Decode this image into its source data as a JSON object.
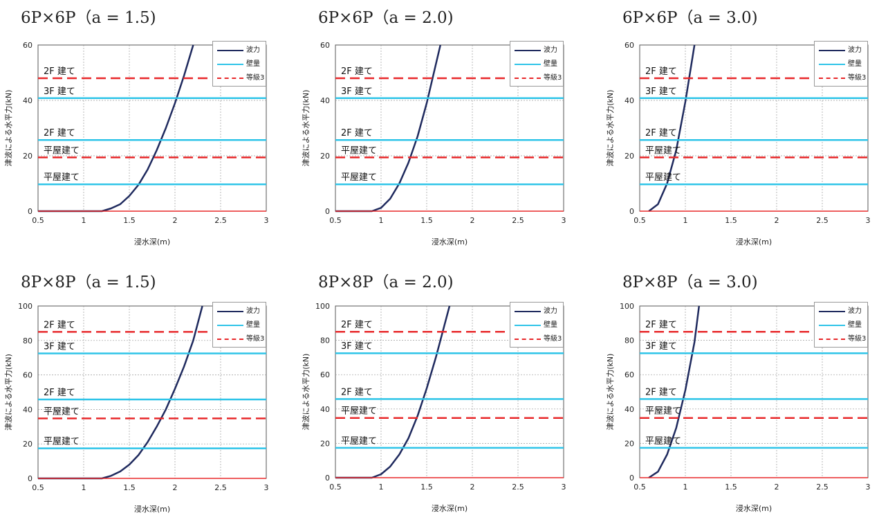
{
  "chart_data": [
    {
      "type": "line",
      "title": "6P×6P（a = 1.5)",
      "xlabel": "浸水深(m)",
      "ylabel": "津波による水平力(kN)",
      "xlim": [
        0.5,
        3
      ],
      "ylim": [
        0,
        60
      ],
      "xticks": [
        0.5,
        1,
        1.5,
        2,
        2.5,
        3
      ],
      "xtick_labels": [
        "0.5",
        "1",
        "1.5",
        "2",
        "2.5",
        "3"
      ],
      "yticks": [
        0,
        20,
        40,
        60
      ],
      "ytick_labels": [
        "0",
        "20",
        "40",
        "60"
      ],
      "grid": true,
      "legend_position": "top-right",
      "series": [
        {
          "name": "波力",
          "color": "#1f2a5e",
          "x": [
            0.5,
            1.2,
            1.3,
            1.4,
            1.5,
            1.6,
            1.7,
            1.8,
            1.9,
            2.0,
            2.1,
            2.2
          ],
          "y": [
            0,
            0,
            1.0,
            2.5,
            5.5,
            9.5,
            15.0,
            22.0,
            30.0,
            39.0,
            49.0,
            60.0
          ]
        },
        {
          "name": "壁量",
          "color": "#2ec4e8",
          "y_const": [
            9.7,
            25.7,
            40.8
          ]
        },
        {
          "name": "等級3",
          "color": "#e8282a",
          "dashed": true,
          "y_const": [
            19.4,
            48.0
          ]
        }
      ],
      "annotations": [
        {
          "text": "2F 建て",
          "y": 48.0
        },
        {
          "text": "3F 建て",
          "y": 40.8
        },
        {
          "text": "2F 建て",
          "y": 25.7
        },
        {
          "text": "平屋建て",
          "y": 19.4
        },
        {
          "text": "平屋建て",
          "y": 9.7
        }
      ]
    },
    {
      "type": "line",
      "title": "6P×6P（a = 2.0)",
      "xlabel": "浸水深(m)",
      "ylabel": "津波による水平力(kN)",
      "xlim": [
        0.5,
        3
      ],
      "ylim": [
        0,
        60
      ],
      "xticks": [
        0.5,
        1,
        1.5,
        2,
        2.5,
        3
      ],
      "xtick_labels": [
        "0.5",
        "1",
        "1.5",
        "2",
        "2.5",
        "3"
      ],
      "yticks": [
        0,
        20,
        40,
        60
      ],
      "ytick_labels": [
        "0",
        "20",
        "40",
        "60"
      ],
      "grid": true,
      "legend_position": "top-right",
      "series": [
        {
          "name": "波力",
          "color": "#1f2a5e",
          "x": [
            0.5,
            0.9,
            1.0,
            1.1,
            1.2,
            1.3,
            1.4,
            1.5,
            1.6,
            1.65
          ],
          "y": [
            0,
            0,
            1.2,
            4.5,
            10.0,
            17.5,
            27.0,
            39.0,
            53.0,
            60.0
          ]
        },
        {
          "name": "壁量",
          "color": "#2ec4e8",
          "y_const": [
            9.7,
            25.7,
            40.8
          ]
        },
        {
          "name": "等級3",
          "color": "#e8282a",
          "dashed": true,
          "y_const": [
            19.4,
            48.0
          ]
        }
      ],
      "annotations": [
        {
          "text": "2F 建て",
          "y": 48.0
        },
        {
          "text": "3F 建て",
          "y": 40.8
        },
        {
          "text": "2F 建て",
          "y": 25.7
        },
        {
          "text": "平屋建て",
          "y": 19.4
        },
        {
          "text": "平屋建て",
          "y": 9.7
        }
      ]
    },
    {
      "type": "line",
      "title": "6P×6P（a = 3.0)",
      "xlabel": "浸水深(m)",
      "ylabel": "津波による水平力(kN)",
      "xlim": [
        0.5,
        3
      ],
      "ylim": [
        0,
        60
      ],
      "xticks": [
        0.5,
        1,
        1.5,
        2,
        2.5,
        3
      ],
      "xtick_labels": [
        "0.5",
        "1",
        "1.5",
        "2",
        "2.5",
        "3"
      ],
      "yticks": [
        0,
        20,
        40,
        60
      ],
      "ytick_labels": [
        "0",
        "20",
        "40",
        "60"
      ],
      "grid": true,
      "legend_position": "top-right",
      "series": [
        {
          "name": "波力",
          "color": "#1f2a5e",
          "x": [
            0.6,
            0.7,
            0.8,
            0.9,
            1.0,
            1.1
          ],
          "y": [
            0,
            2.5,
            10.0,
            22.0,
            39.5,
            60.0
          ]
        },
        {
          "name": "壁量",
          "color": "#2ec4e8",
          "y_const": [
            9.7,
            25.7,
            40.8
          ]
        },
        {
          "name": "等級3",
          "color": "#e8282a",
          "dashed": true,
          "y_const": [
            19.4,
            48.0
          ]
        }
      ],
      "annotations": [
        {
          "text": "2F 建て",
          "y": 48.0
        },
        {
          "text": "3F 建て",
          "y": 40.8
        },
        {
          "text": "2F 建て",
          "y": 25.7
        },
        {
          "text": "平屋建て",
          "y": 19.4
        },
        {
          "text": "平屋建て",
          "y": 9.7
        }
      ]
    },
    {
      "type": "line",
      "title": "8P×8P（a = 1.5)",
      "xlabel": "浸水深(m)",
      "ylabel": "津波による水平力(kN)",
      "xlim": [
        0.5,
        3
      ],
      "ylim": [
        0,
        100
      ],
      "xticks": [
        0.5,
        1,
        1.5,
        2,
        2.5,
        3
      ],
      "xtick_labels": [
        "0.5",
        "1",
        "1.5",
        "2",
        "2.5",
        "3"
      ],
      "yticks": [
        0,
        20,
        40,
        60,
        80,
        100
      ],
      "ytick_labels": [
        "0",
        "20",
        "40",
        "60",
        "80",
        "100"
      ],
      "grid": true,
      "legend_position": "top-right",
      "series": [
        {
          "name": "波力",
          "color": "#1f2a5e",
          "x": [
            0.5,
            1.2,
            1.3,
            1.4,
            1.5,
            1.6,
            1.7,
            1.8,
            1.9,
            2.0,
            2.1,
            2.2,
            2.3
          ],
          "y": [
            0,
            0,
            1.5,
            4.0,
            8.0,
            13.5,
            21.0,
            30.0,
            40.0,
            52.0,
            65.0,
            80.0,
            100.0
          ]
        },
        {
          "name": "壁量",
          "color": "#2ec4e8",
          "y_const": [
            17.4,
            45.8,
            72.5
          ]
        },
        {
          "name": "等級3",
          "color": "#e8282a",
          "dashed": true,
          "y_const": [
            34.8,
            85.0
          ]
        }
      ],
      "annotations": [
        {
          "text": "2F 建て",
          "y": 85.0
        },
        {
          "text": "3F 建て",
          "y": 72.5
        },
        {
          "text": "2F 建て",
          "y": 45.8
        },
        {
          "text": "平屋建て",
          "y": 34.8
        },
        {
          "text": "平屋建て",
          "y": 17.4
        }
      ]
    },
    {
      "type": "line",
      "title": "8P×8P（a = 2.0)",
      "xlabel": "浸水深(m)",
      "ylabel": "津波による水平力(kN)",
      "xlim": [
        0.5,
        3
      ],
      "ylim": [
        0,
        100
      ],
      "xticks": [
        0.5,
        1,
        1.5,
        2,
        2.5,
        3
      ],
      "xtick_labels": [
        "0.5",
        "1",
        "1.5",
        "2",
        "2.5",
        "3"
      ],
      "yticks": [
        0,
        20,
        40,
        60,
        80,
        100
      ],
      "ytick_labels": [
        "0",
        "20",
        "40",
        "60",
        "80",
        "100"
      ],
      "grid": true,
      "legend_position": "top-right",
      "series": [
        {
          "name": "波力",
          "color": "#1f2a5e",
          "x": [
            0.5,
            0.9,
            1.0,
            1.1,
            1.2,
            1.3,
            1.4,
            1.5,
            1.6,
            1.7,
            1.75
          ],
          "y": [
            0,
            0,
            2.0,
            6.5,
            13.5,
            23.0,
            36.0,
            52.0,
            70.0,
            90.0,
            100.0
          ]
        },
        {
          "name": "壁量",
          "color": "#2ec4e8",
          "y_const": [
            17.4,
            45.8,
            72.5
          ]
        },
        {
          "name": "等級3",
          "color": "#e8282a",
          "dashed": true,
          "y_const": [
            34.8,
            85.0
          ]
        }
      ],
      "annotations": [
        {
          "text": "2F 建て",
          "y": 85.0
        },
        {
          "text": "3F 建て",
          "y": 72.5
        },
        {
          "text": "2F 建て",
          "y": 45.8
        },
        {
          "text": "平屋建て",
          "y": 34.8
        },
        {
          "text": "平屋建て",
          "y": 17.4
        }
      ]
    },
    {
      "type": "line",
      "title": "8P×8P（a = 3.0)",
      "xlabel": "浸水深(m)",
      "ylabel": "津波による水平力(kN)",
      "xlim": [
        0.5,
        3
      ],
      "ylim": [
        0,
        100
      ],
      "xticks": [
        0.5,
        1,
        1.5,
        2,
        2.5,
        3
      ],
      "xtick_labels": [
        "0.5",
        "1",
        "1.5",
        "2",
        "2.5",
        "3"
      ],
      "yticks": [
        0,
        20,
        40,
        60,
        80,
        100
      ],
      "ytick_labels": [
        "0",
        "20",
        "40",
        "60",
        "80",
        "100"
      ],
      "grid": true,
      "legend_position": "top-right",
      "series": [
        {
          "name": "波力",
          "color": "#1f2a5e",
          "x": [
            0.6,
            0.7,
            0.8,
            0.9,
            1.0,
            1.1,
            1.15
          ],
          "y": [
            0,
            3.5,
            13.5,
            29.0,
            51.0,
            79.0,
            100.0
          ]
        },
        {
          "name": "壁量",
          "color": "#2ec4e8",
          "y_const": [
            17.4,
            45.8,
            72.5
          ]
        },
        {
          "name": "等級3",
          "color": "#e8282a",
          "dashed": true,
          "y_const": [
            34.8,
            85.0
          ]
        }
      ],
      "annotations": [
        {
          "text": "2F 建て",
          "y": 85.0
        },
        {
          "text": "3F 建て",
          "y": 72.5
        },
        {
          "text": "2F 建て",
          "y": 45.8
        },
        {
          "text": "平屋建て",
          "y": 34.8
        },
        {
          "text": "平屋建て",
          "y": 17.4
        }
      ]
    }
  ]
}
